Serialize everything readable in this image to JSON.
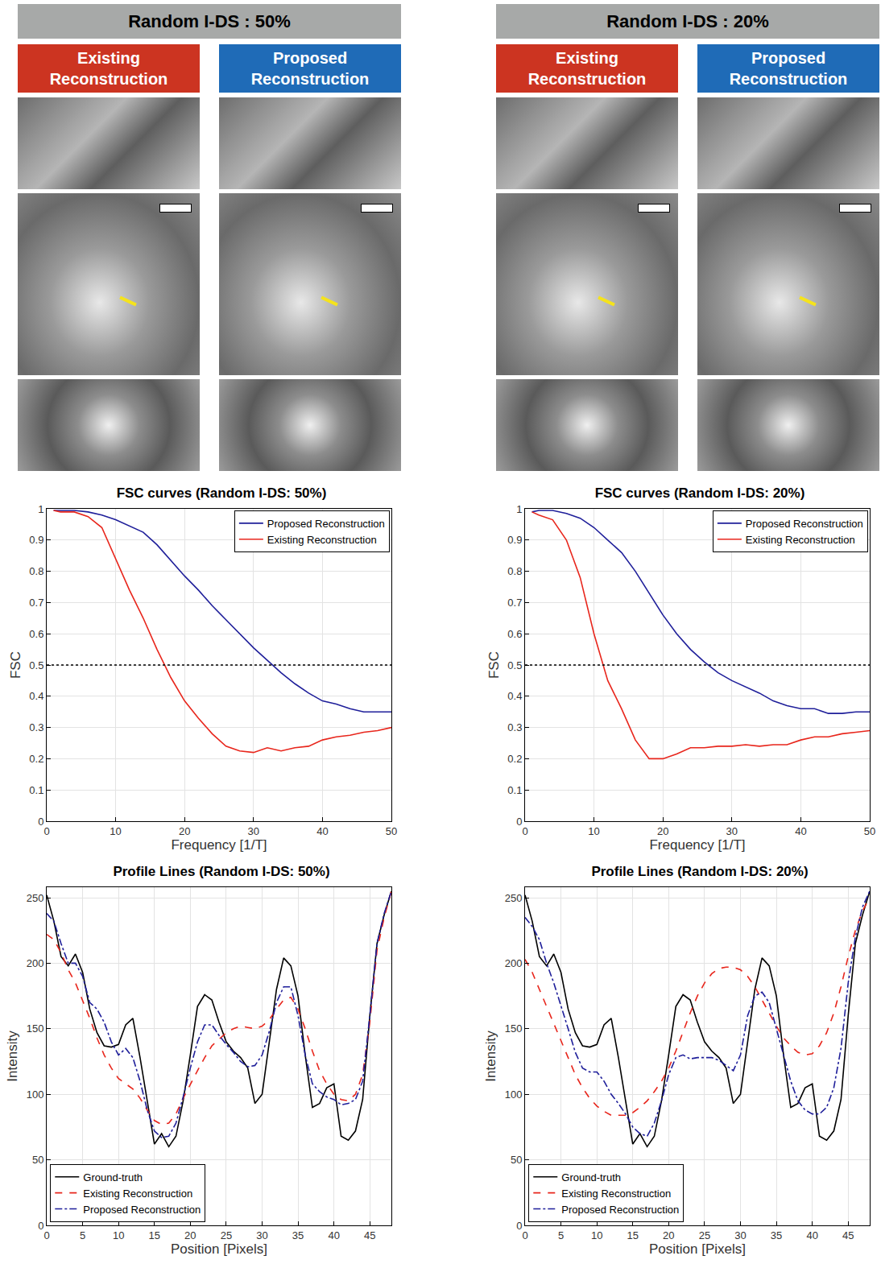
{
  "panels": [
    {
      "title": "Random I-DS : 50%",
      "columns": [
        "Existing Reconstruction",
        "Proposed Reconstruction"
      ]
    },
    {
      "title": "Random I-DS : 20%",
      "columns": [
        "Existing Reconstruction",
        "Proposed Reconstruction"
      ]
    }
  ],
  "chart_data": [
    {
      "type": "line",
      "title": "FSC curves (Random I-DS: 50%)",
      "x_label": "Frequency [1/T]",
      "y_label": "FSC",
      "x": [
        1,
        2,
        4,
        6,
        8,
        10,
        12,
        14,
        16,
        18,
        20,
        22,
        24,
        26,
        28,
        30,
        32,
        34,
        36,
        38,
        40,
        42,
        44,
        46,
        48,
        50
      ],
      "series": [
        {
          "name": "Proposed Reconstruction",
          "color": "#1f1f9a",
          "line_style": "solid",
          "values": [
            0.995,
            0.995,
            0.995,
            0.99,
            0.98,
            0.965,
            0.945,
            0.925,
            0.885,
            0.835,
            0.785,
            0.74,
            0.69,
            0.645,
            0.6,
            0.555,
            0.515,
            0.475,
            0.44,
            0.41,
            0.385,
            0.375,
            0.36,
            0.35,
            0.35,
            0.35
          ]
        },
        {
          "name": "Existing Reconstruction",
          "color": "#e8261c",
          "line_style": "solid",
          "values": [
            0.995,
            0.99,
            0.99,
            0.975,
            0.94,
            0.84,
            0.74,
            0.65,
            0.55,
            0.46,
            0.385,
            0.33,
            0.28,
            0.24,
            0.225,
            0.22,
            0.235,
            0.225,
            0.235,
            0.24,
            0.26,
            0.27,
            0.275,
            0.285,
            0.29,
            0.3
          ]
        }
      ],
      "threshold": 0.5,
      "xlim": [
        0,
        50
      ],
      "xticks": [
        0,
        10,
        20,
        30,
        40,
        50
      ],
      "ylim": [
        0,
        1
      ],
      "yticks": [
        0,
        0.1,
        0.2,
        0.3,
        0.4,
        0.5,
        0.6,
        0.7,
        0.8,
        0.9,
        1
      ],
      "grid": true,
      "legend": "upper right"
    },
    {
      "type": "line",
      "title": "FSC curves (Random I-DS: 20%)",
      "x_label": "Frequency [1/T]",
      "y_label": "FSC",
      "x": [
        1,
        2,
        4,
        6,
        8,
        10,
        12,
        14,
        16,
        18,
        20,
        22,
        24,
        26,
        28,
        30,
        32,
        34,
        36,
        38,
        40,
        42,
        44,
        46,
        48,
        50
      ],
      "series": [
        {
          "name": "Proposed Reconstruction",
          "color": "#1f1f9a",
          "line_style": "solid",
          "values": [
            0.99,
            0.995,
            0.995,
            0.985,
            0.97,
            0.94,
            0.9,
            0.86,
            0.8,
            0.73,
            0.66,
            0.6,
            0.55,
            0.51,
            0.475,
            0.45,
            0.43,
            0.41,
            0.385,
            0.37,
            0.36,
            0.36,
            0.345,
            0.345,
            0.35,
            0.35
          ]
        },
        {
          "name": "Existing Reconstruction",
          "color": "#e8261c",
          "line_style": "solid",
          "values": [
            0.99,
            0.98,
            0.965,
            0.9,
            0.78,
            0.6,
            0.45,
            0.36,
            0.26,
            0.2,
            0.2,
            0.215,
            0.235,
            0.235,
            0.24,
            0.24,
            0.245,
            0.24,
            0.245,
            0.245,
            0.26,
            0.27,
            0.27,
            0.28,
            0.285,
            0.29
          ]
        }
      ],
      "threshold": 0.5,
      "xlim": [
        0,
        50
      ],
      "xticks": [
        0,
        10,
        20,
        30,
        40,
        50
      ],
      "ylim": [
        0,
        1
      ],
      "yticks": [
        0,
        0.1,
        0.2,
        0.3,
        0.4,
        0.5,
        0.6,
        0.7,
        0.8,
        0.9,
        1
      ],
      "grid": true,
      "legend": "upper right"
    },
    {
      "type": "line",
      "title": "Profile Lines (Random I-DS: 50%)",
      "x_label": "Position [Pixels]",
      "y_label": "Intensity",
      "x": [
        0,
        1,
        2,
        3,
        4,
        5,
        6,
        7,
        8,
        9,
        10,
        11,
        12,
        13,
        14,
        15,
        16,
        17,
        18,
        19,
        20,
        21,
        22,
        23,
        24,
        25,
        26,
        27,
        28,
        29,
        30,
        31,
        32,
        33,
        34,
        35,
        36,
        37,
        38,
        39,
        40,
        41,
        42,
        43,
        44,
        45,
        46,
        47,
        48
      ],
      "series": [
        {
          "name": "Ground-truth",
          "color": "#000000",
          "line_style": "solid",
          "values": [
            252,
            232,
            205,
            198,
            207,
            193,
            165,
            147,
            137,
            136,
            138,
            153,
            158,
            128,
            95,
            62,
            70,
            60,
            68,
            95,
            130,
            167,
            176,
            172,
            155,
            140,
            133,
            128,
            120,
            93,
            100,
            140,
            180,
            204,
            198,
            175,
            130,
            90,
            93,
            105,
            108,
            68,
            65,
            72,
            96,
            160,
            215,
            237,
            255
          ]
        },
        {
          "name": "Existing Reconstruction",
          "color": "#e8261c",
          "line_style": "dash",
          "values": [
            222,
            218,
            208,
            195,
            185,
            172,
            158,
            143,
            130,
            120,
            112,
            108,
            104,
            97,
            88,
            80,
            77,
            78,
            85,
            97,
            108,
            118,
            128,
            137,
            142,
            147,
            150,
            152,
            151,
            150,
            152,
            157,
            165,
            172,
            174,
            165,
            150,
            133,
            118,
            108,
            100,
            96,
            95,
            100,
            115,
            155,
            210,
            235,
            255
          ]
        },
        {
          "name": "Proposed Reconstruction",
          "color": "#1f1f9a",
          "line_style": "dashdot",
          "values": [
            238,
            232,
            215,
            200,
            200,
            190,
            170,
            165,
            155,
            140,
            130,
            135,
            128,
            110,
            88,
            72,
            67,
            68,
            78,
            98,
            120,
            140,
            153,
            153,
            145,
            138,
            132,
            125,
            121,
            122,
            130,
            148,
            170,
            182,
            182,
            160,
            130,
            108,
            102,
            98,
            96,
            92,
            93,
            96,
            110,
            160,
            215,
            238,
            255
          ]
        }
      ],
      "xlim": [
        0,
        48
      ],
      "xticks": [
        0,
        5,
        10,
        15,
        20,
        25,
        30,
        35,
        40,
        45
      ],
      "ylim": [
        0,
        258
      ],
      "yticks": [
        0,
        50,
        100,
        150,
        200,
        250
      ],
      "grid": true,
      "legend": "lower left"
    },
    {
      "type": "line",
      "title": "Profile Lines (Random I-DS: 20%)",
      "x_label": "Position [Pixels]",
      "y_label": "Intensity",
      "x": [
        0,
        1,
        2,
        3,
        4,
        5,
        6,
        7,
        8,
        9,
        10,
        11,
        12,
        13,
        14,
        15,
        16,
        17,
        18,
        19,
        20,
        21,
        22,
        23,
        24,
        25,
        26,
        27,
        28,
        29,
        30,
        31,
        32,
        33,
        34,
        35,
        36,
        37,
        38,
        39,
        40,
        41,
        42,
        43,
        44,
        45,
        46,
        47,
        48
      ],
      "series": [
        {
          "name": "Ground-truth",
          "color": "#000000",
          "line_style": "solid",
          "values": [
            252,
            232,
            205,
            198,
            207,
            193,
            165,
            147,
            137,
            136,
            138,
            153,
            158,
            128,
            95,
            62,
            70,
            60,
            68,
            95,
            130,
            167,
            176,
            172,
            155,
            140,
            133,
            128,
            120,
            93,
            100,
            140,
            180,
            204,
            198,
            175,
            130,
            90,
            93,
            105,
            108,
            68,
            65,
            72,
            96,
            160,
            215,
            237,
            255
          ]
        },
        {
          "name": "Existing Reconstruction",
          "color": "#e8261c",
          "line_style": "dash",
          "values": [
            203,
            193,
            180,
            167,
            153,
            140,
            127,
            115,
            105,
            97,
            91,
            87,
            84,
            84,
            84,
            86,
            90,
            95,
            102,
            110,
            120,
            133,
            148,
            162,
            175,
            185,
            192,
            196,
            197,
            197,
            195,
            190,
            182,
            172,
            162,
            152,
            143,
            137,
            132,
            130,
            131,
            137,
            147,
            162,
            182,
            205,
            225,
            240,
            250
          ]
        },
        {
          "name": "Proposed Reconstruction",
          "color": "#1f1f9a",
          "line_style": "dashdot",
          "values": [
            235,
            228,
            218,
            200,
            185,
            168,
            150,
            132,
            120,
            117,
            117,
            110,
            100,
            93,
            85,
            75,
            70,
            68,
            78,
            95,
            115,
            128,
            130,
            127,
            128,
            128,
            128,
            126,
            122,
            118,
            130,
            160,
            175,
            178,
            170,
            150,
            130,
            110,
            95,
            88,
            85,
            85,
            90,
            105,
            135,
            185,
            220,
            243,
            255
          ]
        }
      ],
      "xlim": [
        0,
        48
      ],
      "xticks": [
        0,
        5,
        10,
        15,
        20,
        25,
        30,
        35,
        40,
        45
      ],
      "ylim": [
        0,
        258
      ],
      "yticks": [
        0,
        50,
        100,
        150,
        200,
        250
      ],
      "grid": true,
      "legend": "lower left"
    }
  ]
}
